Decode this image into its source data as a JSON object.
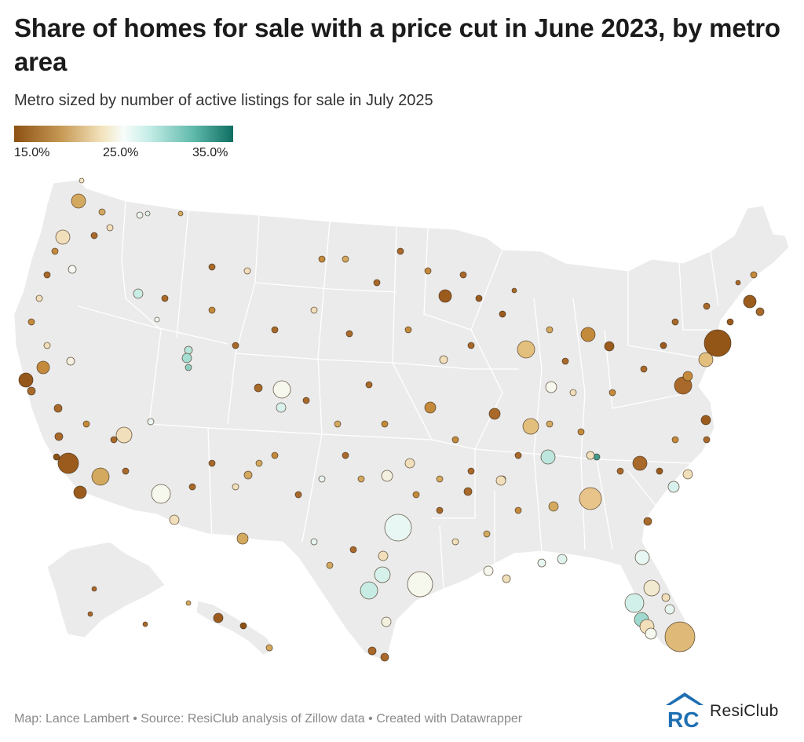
{
  "title": "Share of homes for sale with a price cut in June 2023, by metro area",
  "subtitle": "Metro sized by number of active listings for sale in July 2025",
  "legend": {
    "labels": [
      "15.0%",
      "25.0%",
      "35.0%"
    ]
  },
  "footer": "Map: Lance Lambert • Source: ResiClub analysis of Zillow data • Created with Datawrapper",
  "brand": {
    "name": "ResiClub",
    "logo_letters": "RC"
  },
  "colors": {
    "low": "#8c5113",
    "mid": "#f7fdfb",
    "high": "#0e6e61",
    "land": "#ebebeb"
  }
}
